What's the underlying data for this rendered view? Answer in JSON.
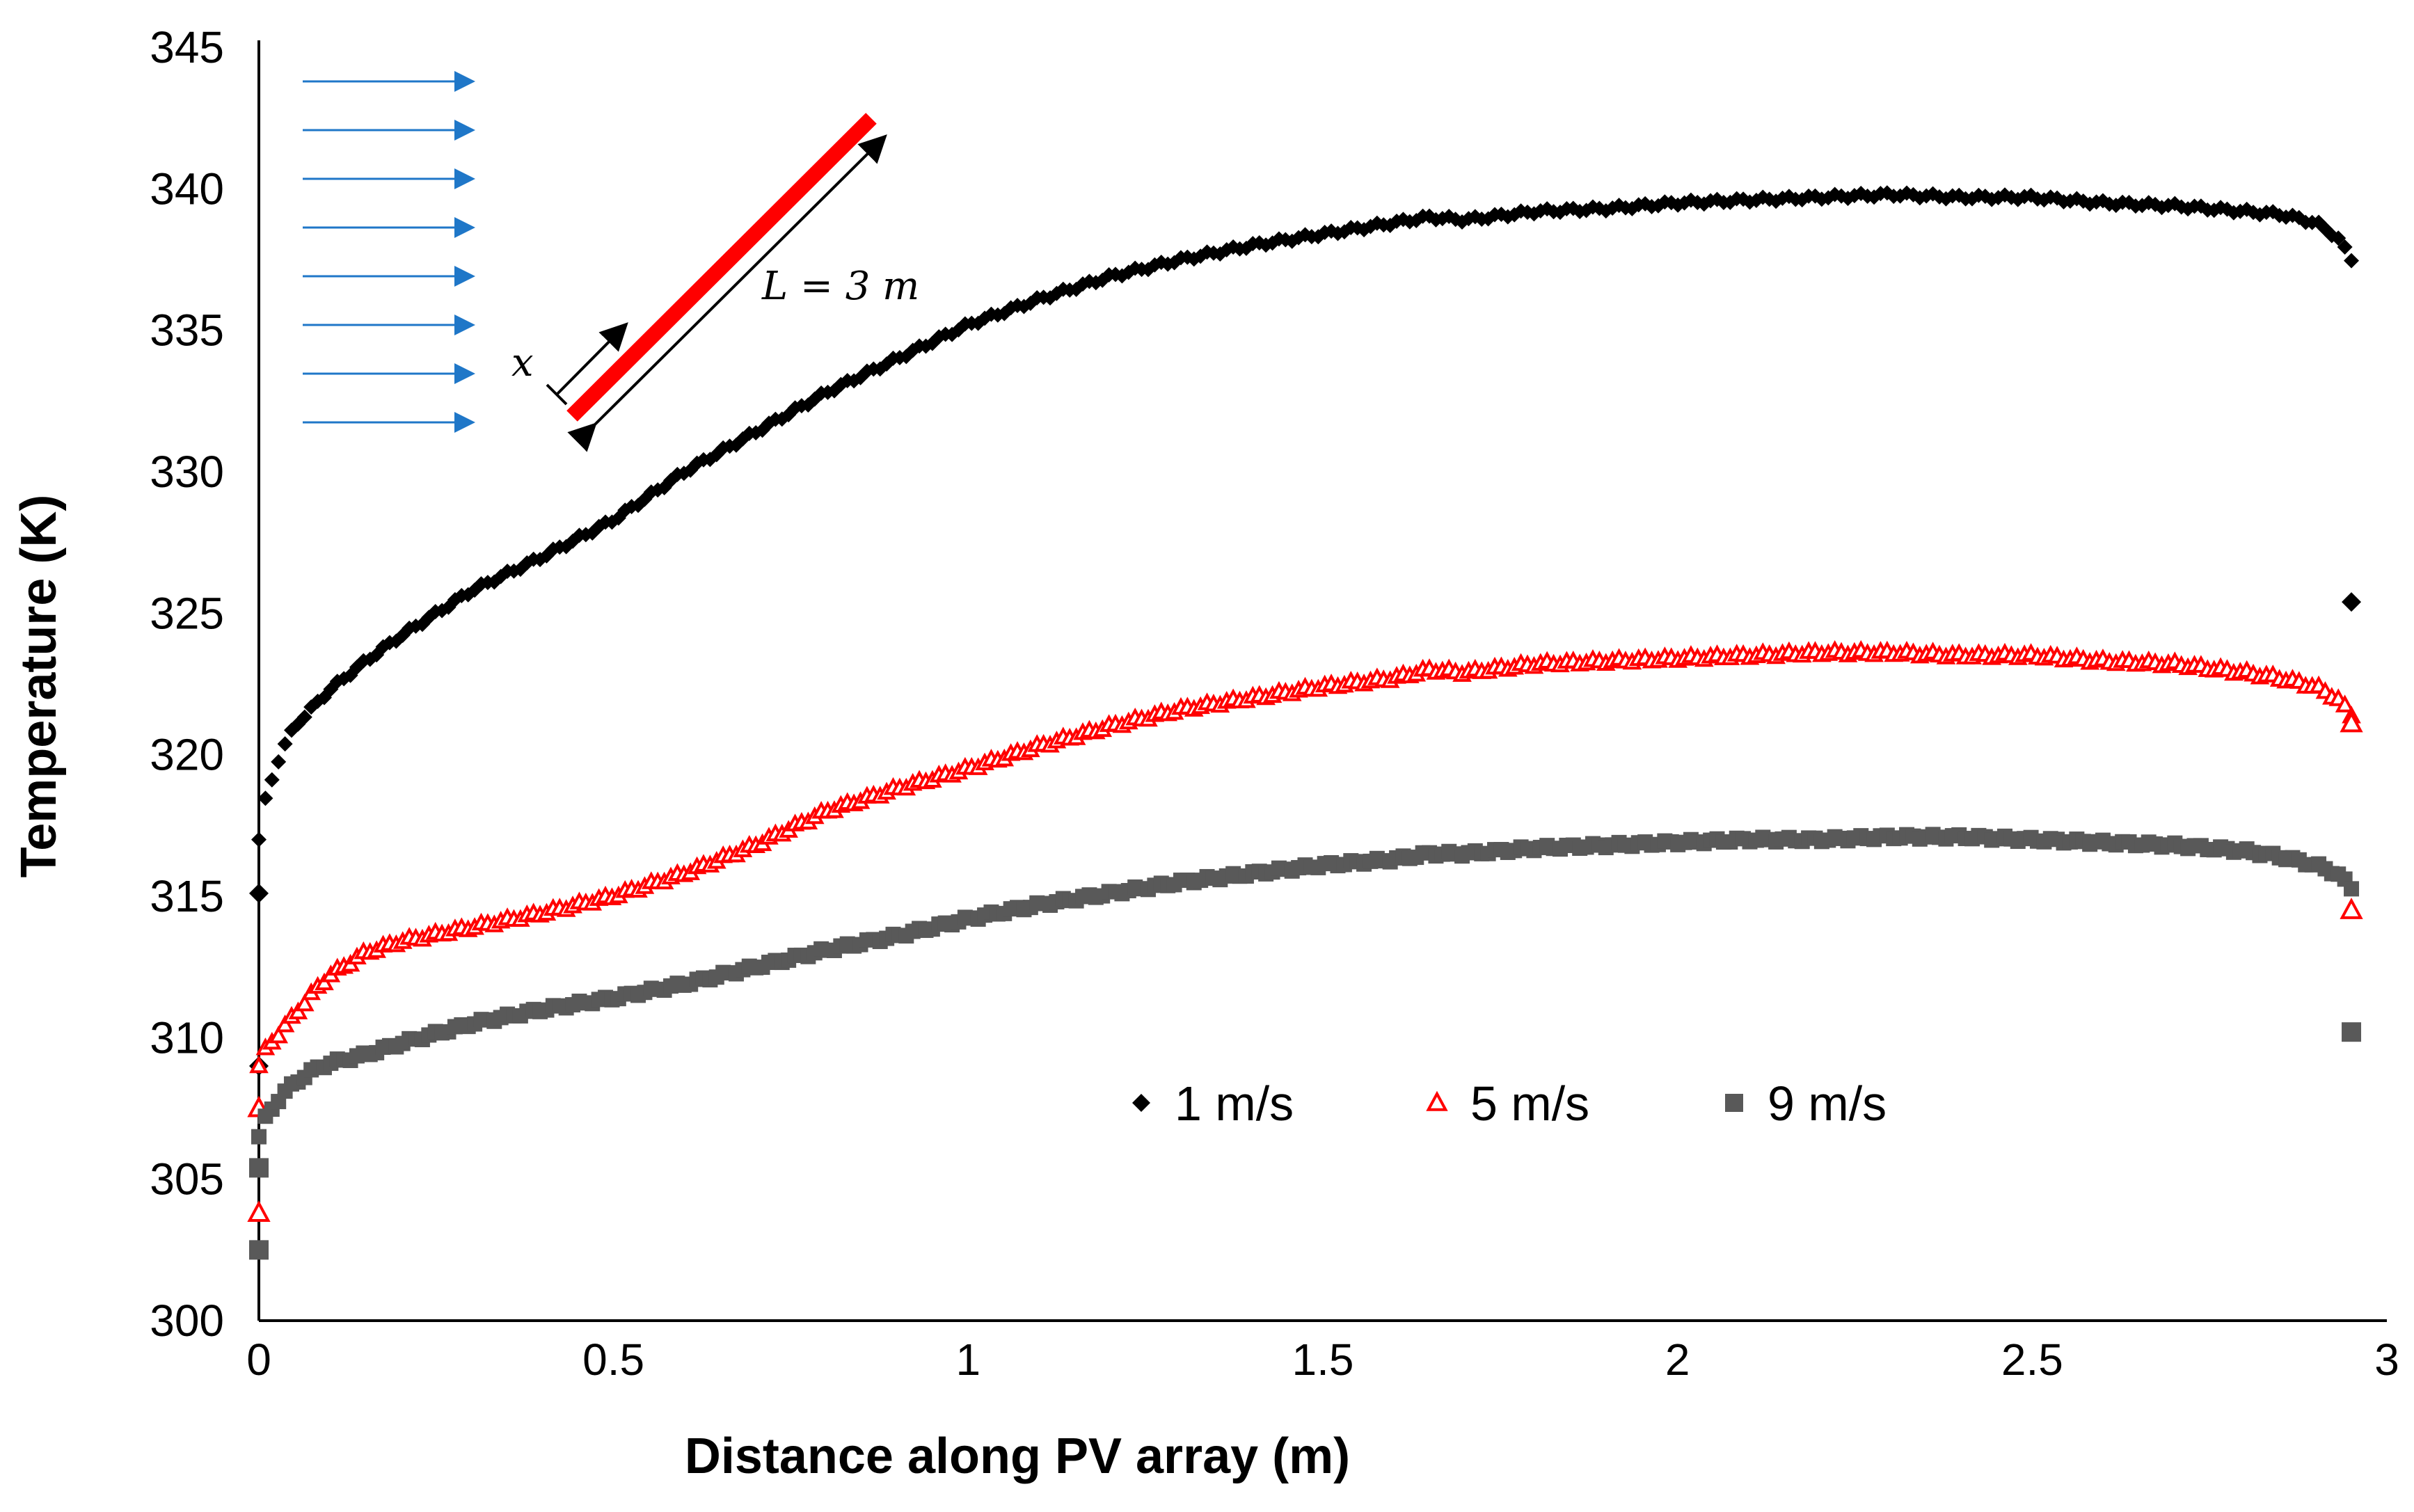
{
  "chart_data": {
    "type": "scatter",
    "title": "",
    "xlabel": "Distance along PV array (m)",
    "ylabel": "Temperature (K)",
    "xlim": [
      0,
      3
    ],
    "ylim": [
      300,
      345
    ],
    "xticks": [
      0,
      0.5,
      1,
      1.5,
      2,
      2.5,
      3
    ],
    "xtick_labels": [
      "0",
      "0.5",
      "1",
      "1.5",
      "2",
      "2.5",
      "3"
    ],
    "yticks": [
      300,
      305,
      310,
      315,
      320,
      325,
      330,
      335,
      340,
      345
    ],
    "ytick_labels": [
      "300",
      "305",
      "310",
      "315",
      "320",
      "325",
      "330",
      "335",
      "340",
      "345"
    ],
    "grid": false,
    "legend_position": "bottom-center",
    "series": [
      {
        "name": "1 m/s",
        "marker": "diamond",
        "color": "#000000",
        "curve_x": [
          0,
          0.01,
          0.03,
          0.05,
          0.1,
          0.15,
          0.2,
          0.25,
          0.3,
          0.4,
          0.5,
          0.6,
          0.7,
          0.8,
          0.9,
          1.0,
          1.1,
          1.2,
          1.3,
          1.4,
          1.5,
          1.6,
          1.65,
          1.7,
          1.8,
          1.9,
          2.0,
          2.1,
          2.2,
          2.3,
          2.4,
          2.5,
          2.6,
          2.7,
          2.8,
          2.85,
          2.9,
          2.93,
          2.95
        ],
        "curve_y": [
          317.0,
          318.5,
          320.0,
          321.0,
          322.3,
          323.3,
          324.2,
          325.0,
          325.8,
          327.0,
          328.3,
          330.0,
          331.4,
          332.8,
          334.0,
          335.2,
          336.1,
          336.9,
          337.5,
          338.0,
          338.4,
          338.8,
          339.0,
          338.9,
          339.2,
          339.3,
          339.5,
          339.6,
          339.7,
          339.8,
          339.7,
          339.7,
          339.5,
          339.4,
          339.2,
          339.1,
          338.8,
          338.3,
          337.5
        ],
        "outlier_x": [
          0,
          0,
          2.95
        ],
        "outlier_y": [
          315.1,
          309.0,
          325.4
        ]
      },
      {
        "name": "5 m/s",
        "marker": "triangle-open",
        "color": "#ff0000",
        "curve_x": [
          0,
          0.01,
          0.03,
          0.05,
          0.08,
          0.1,
          0.15,
          0.2,
          0.3,
          0.4,
          0.5,
          0.6,
          0.7,
          0.8,
          0.9,
          1.0,
          1.1,
          1.2,
          1.3,
          1.4,
          1.5,
          1.6,
          1.65,
          1.7,
          1.8,
          1.9,
          2.0,
          2.1,
          2.2,
          2.3,
          2.4,
          2.5,
          2.6,
          2.7,
          2.8,
          2.85,
          2.9,
          2.93,
          2.95
        ],
        "curve_y": [
          309.0,
          309.6,
          310.2,
          310.8,
          311.7,
          312.2,
          313.0,
          313.4,
          313.9,
          314.4,
          315.0,
          315.8,
          316.8,
          318.0,
          318.8,
          319.5,
          320.3,
          321.0,
          321.6,
          322.0,
          322.4,
          322.7,
          323.0,
          322.9,
          323.2,
          323.3,
          323.4,
          323.5,
          323.6,
          323.6,
          323.5,
          323.5,
          323.3,
          323.2,
          322.9,
          322.7,
          322.4,
          322.0,
          321.4
        ],
        "outlier_x": [
          0,
          0,
          2.95,
          2.95
        ],
        "outlier_y": [
          307.5,
          303.8,
          321.1,
          314.5
        ]
      },
      {
        "name": "9 m/s",
        "marker": "square",
        "color": "#595959",
        "curve_x": [
          0,
          0.01,
          0.03,
          0.05,
          0.08,
          0.1,
          0.15,
          0.2,
          0.3,
          0.4,
          0.5,
          0.6,
          0.7,
          0.8,
          0.9,
          1.0,
          1.1,
          1.2,
          1.3,
          1.4,
          1.5,
          1.6,
          1.65,
          1.7,
          1.8,
          1.9,
          2.0,
          2.1,
          2.2,
          2.3,
          2.4,
          2.5,
          2.6,
          2.7,
          2.8,
          2.85,
          2.9,
          2.93,
          2.95
        ],
        "curve_y": [
          306.5,
          307.2,
          307.9,
          308.4,
          308.9,
          309.1,
          309.4,
          309.8,
          310.5,
          311.0,
          311.4,
          311.9,
          312.5,
          313.1,
          313.6,
          314.2,
          314.7,
          315.1,
          315.5,
          315.8,
          316.1,
          316.3,
          316.5,
          316.5,
          316.7,
          316.8,
          316.9,
          317.0,
          317.0,
          317.1,
          317.1,
          317.0,
          316.9,
          316.8,
          316.6,
          316.4,
          316.1,
          315.8,
          315.3
        ],
        "outlier_x": [
          0,
          0,
          2.95
        ],
        "outlier_y": [
          305.4,
          302.5,
          310.2
        ]
      }
    ],
    "inset": {
      "length_label": "L = 3 m",
      "position_label": "x",
      "wind_arrow_count": 8
    }
  }
}
